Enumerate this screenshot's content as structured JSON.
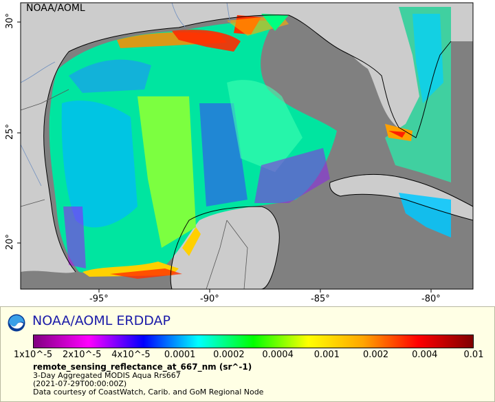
{
  "map": {
    "credit": "NOAA/AOML",
    "lon_labels": [
      "-95°",
      "-90°",
      "-85°",
      "-80°"
    ],
    "lat_labels": [
      "30°",
      "25°",
      "20°"
    ],
    "colors": {
      "land": "#cccccc",
      "no_data_ocean": "#808080",
      "coast": "#000000",
      "borders": "#555555",
      "rivers": "#6f8fbf"
    }
  },
  "legend": {
    "title": "NOAA/AOML ERDDAP",
    "colorbar_labels": [
      "1x10^-5",
      "2x10^-5",
      "4x10^-5",
      "0.0001",
      "0.0002",
      "0.0004",
      "0.001",
      "0.002",
      "0.004",
      "0.01"
    ],
    "colorbar_colors": [
      "#800080",
      "#ff00ff",
      "#0000ff",
      "#00ffff",
      "#00ff00",
      "#ffff00",
      "#ffa500",
      "#ff0000",
      "#800000"
    ],
    "variable": "remote_sensing_reflectance_at_667_nm (sr^-1)",
    "lines": [
      "3-Day Aggregated MODIS Aqua Rrs667",
      "(2021-07-29T00:00:00Z)",
      "Data courtesy of CoastWatch, Carib. and GoM Regional Node"
    ],
    "logo": "noaa-logo"
  }
}
